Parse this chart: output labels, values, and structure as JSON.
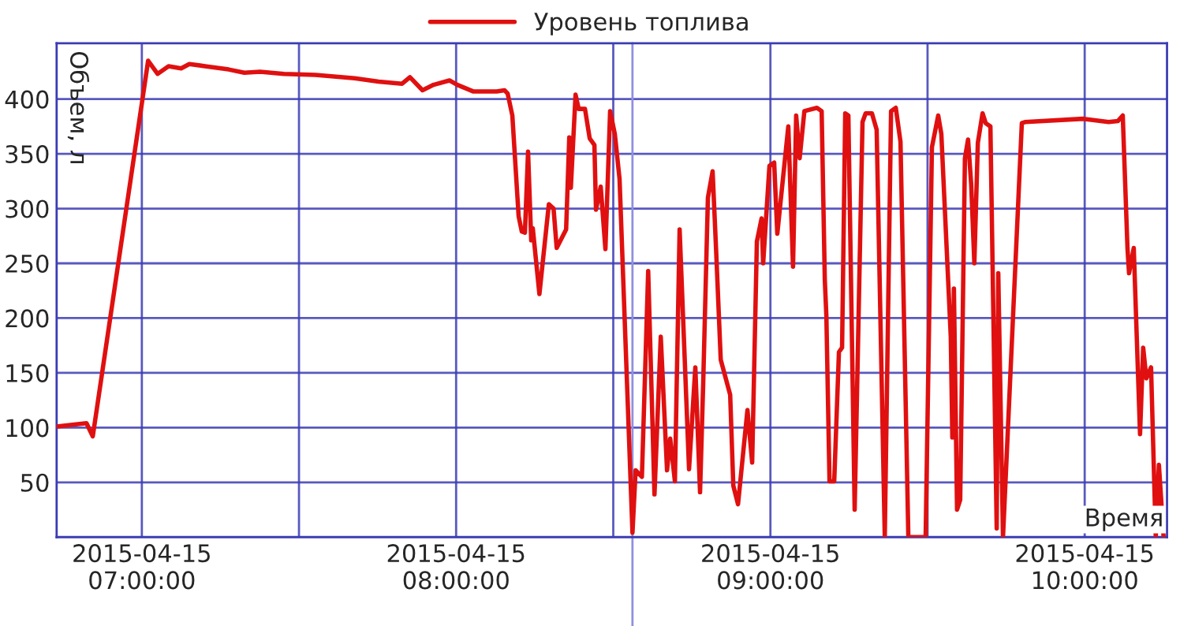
{
  "chart_data": {
    "type": "line",
    "xlabel": "Время",
    "ylabel": "Объем, л",
    "x": [
      "2015-04-15T06:43:44",
      "2015-04-15T06:49:26",
      "2015-04-15T06:50:38",
      "2015-04-15T07:01:12",
      "2015-04-15T07:03:00",
      "2015-04-15T07:05:06",
      "2015-04-15T07:07:30",
      "2015-04-15T07:09:04",
      "2015-04-15T07:12:04",
      "2015-04-15T07:16:34",
      "2015-04-15T07:19:34",
      "2015-04-15T07:22:34",
      "2015-04-15T07:27:07",
      "2015-04-15T07:33:07",
      "2015-04-15T07:40:37",
      "2015-04-15T07:45:11",
      "2015-04-15T07:49:41",
      "2015-04-15T07:51:11",
      "2015-04-15T07:53:35",
      "2015-04-15T07:55:41",
      "2015-04-15T07:58:44",
      "2015-04-15T08:00:14",
      "2015-04-15T08:03:14",
      "2015-04-15T08:07:44",
      "2015-04-15T08:09:14",
      "2015-04-15T08:09:50",
      "2015-04-15T08:10:44",
      "2015-04-15T08:11:56",
      "2015-04-15T08:12:32",
      "2015-04-15T08:13:08",
      "2015-04-15T08:13:44",
      "2015-04-15T08:14:20",
      "2015-04-15T08:14:38",
      "2015-04-15T08:15:54",
      "2015-04-15T08:17:42",
      "2015-04-15T08:18:36",
      "2015-04-15T08:19:12",
      "2015-04-15T08:21:00",
      "2015-04-15T08:21:36",
      "2015-04-15T08:21:54",
      "2015-04-15T08:22:48",
      "2015-04-15T08:23:24",
      "2015-04-15T08:24:36",
      "2015-04-15T08:25:30",
      "2015-04-15T08:26:24",
      "2015-04-15T08:26:42",
      "2015-04-15T08:27:36",
      "2015-04-15T08:28:30",
      "2015-04-15T08:29:24",
      "2015-04-15T08:30:18",
      "2015-04-15T08:31:12",
      "2015-04-15T08:33:40",
      "2015-04-15T08:34:16",
      "2015-04-15T08:35:28",
      "2015-04-15T08:36:40",
      "2015-04-15T08:37:52",
      "2015-04-15T08:39:04",
      "2015-04-15T08:40:16",
      "2015-04-15T08:40:52",
      "2015-04-15T08:41:46",
      "2015-04-15T08:42:40",
      "2015-04-15T08:44:28",
      "2015-04-15T08:45:40",
      "2015-04-15T08:46:34",
      "2015-04-15T08:47:10",
      "2015-04-15T08:48:04",
      "2015-04-15T08:48:58",
      "2015-04-15T08:49:37",
      "2015-04-15T08:50:31",
      "2015-04-15T08:52:19",
      "2015-04-15T08:52:55",
      "2015-04-15T08:53:49",
      "2015-04-15T08:55:37",
      "2015-04-15T08:56:31",
      "2015-04-15T08:57:25",
      "2015-04-15T08:58:19",
      "2015-04-15T08:58:37",
      "2015-04-15T08:59:49",
      "2015-04-15T09:00:43",
      "2015-04-15T09:01:19",
      "2015-04-15T09:03:25",
      "2015-04-15T09:04:19",
      "2015-04-15T09:04:55",
      "2015-04-15T09:05:35",
      "2015-04-15T09:06:29",
      "2015-04-15T09:08:53",
      "2015-04-15T09:09:47",
      "2015-04-15T09:10:23",
      "2015-04-15T09:10:41",
      "2015-04-15T09:11:17",
      "2015-04-15T09:12:11",
      "2015-04-15T09:13:05",
      "2015-04-15T09:13:41",
      "2015-04-15T09:14:17",
      "2015-04-15T09:14:53",
      "2015-04-15T09:16:05",
      "2015-04-15T09:17:35",
      "2015-04-15T09:18:11",
      "2015-04-15T09:19:23",
      "2015-04-15T09:20:17",
      "2015-04-15T09:21:50",
      "2015-04-15T09:23:02",
      "2015-04-15T09:23:56",
      "2015-04-15T09:24:50",
      "2015-04-15T09:26:20",
      "2015-04-15T09:29:38",
      "2015-04-15T09:30:50",
      "2015-04-15T09:32:02",
      "2015-04-15T09:32:38",
      "2015-04-15T09:34:26",
      "2015-04-15T09:34:44",
      "2015-04-15T09:35:02",
      "2015-04-15T09:35:38",
      "2015-04-15T09:36:14",
      "2015-04-15T09:37:08",
      "2015-04-15T09:37:44",
      "2015-04-15T09:38:20",
      "2015-04-15T09:38:56",
      "2015-04-15T09:39:36",
      "2015-04-15T09:40:30",
      "2015-04-15T09:41:06",
      "2015-04-15T09:42:00",
      "2015-04-15T09:43:12",
      "2015-04-15T09:43:30",
      "2015-04-15T09:44:24",
      "2015-04-15T09:48:00",
      "2015-04-15T09:48:36",
      "2015-04-15T09:59:46",
      "2015-04-15T10:04:34",
      "2015-04-15T10:06:22",
      "2015-04-15T10:07:16",
      "2015-04-15T10:08:10",
      "2015-04-15T10:08:28",
      "2015-04-15T10:09:22",
      "2015-04-15T10:10:34",
      "2015-04-15T10:11:10",
      "2015-04-15T10:11:46",
      "2015-04-15T10:12:40",
      "2015-04-15T10:13:34",
      "2015-04-15T10:14:10",
      "2015-04-15T10:15:04"
    ],
    "series": [
      {
        "name": "Уровень топлива",
        "color": "#e01010",
        "values": [
          101,
          104,
          92,
          435,
          423,
          430,
          428,
          432,
          430,
          427,
          424,
          425,
          423,
          422,
          419,
          416,
          414,
          420,
          408,
          413,
          417,
          413,
          407,
          407,
          408,
          405,
          385,
          293,
          279,
          278,
          352,
          271,
          282,
          222,
          304,
          300,
          264,
          281,
          365,
          319,
          404,
          391,
          391,
          364,
          358,
          299,
          320,
          263,
          389,
          368,
          327,
          4,
          61,
          55,
          243,
          39,
          183,
          61,
          90,
          51,
          281,
          62,
          155,
          41,
          140,
          310,
          334,
          264,
          162,
          130,
          47,
          30,
          116,
          68,
          270,
          291,
          250,
          339,
          342,
          277,
          375,
          247,
          385,
          346,
          389,
          392,
          389,
          235,
          202,
          51,
          51,
          169,
          173,
          387,
          385,
          25,
          379,
          387,
          387,
          372,
          0,
          389,
          392,
          361,
          0,
          0,
          356,
          385,
          368,
          183,
          91,
          227,
          25,
          34,
          346,
          363,
          322,
          250,
          360,
          387,
          378,
          375,
          8,
          241,
          0,
          378,
          379,
          382,
          379,
          380,
          385,
          264,
          241,
          264,
          94,
          173,
          145,
          155,
          0,
          66,
          0
        ]
      }
    ],
    "xlim": [
      "2015-04-15T06:43:44",
      "2015-04-15T10:15:43"
    ],
    "xticks": [
      {
        "value": "2015-04-15T07:00",
        "label": "2015-04-15\n07:00:00"
      },
      {
        "value": "2015-04-15T07:30",
        "label": null
      },
      {
        "value": "2015-04-15T08:00",
        "label": "2015-04-15\n08:00:00"
      },
      {
        "value": "2015-04-15T08:30",
        "label": null
      },
      {
        "value": "2015-04-15T09:00",
        "label": "2015-04-15\n09:00:00"
      },
      {
        "value": "2015-04-15T09:30",
        "label": null
      },
      {
        "value": "2015-04-15T10:00",
        "label": "2015-04-15\n10:00:00"
      }
    ],
    "ylim": [
      0,
      451
    ],
    "yticks": [
      50,
      100,
      150,
      200,
      250,
      300,
      350,
      400
    ],
    "ref_lines": [
      {
        "axis": "x",
        "value": "2015-04-15T08:33:40",
        "color": "#9090e0"
      }
    ],
    "grid": true,
    "legend": "top",
    "marker": "none",
    "line_style": "solid"
  }
}
